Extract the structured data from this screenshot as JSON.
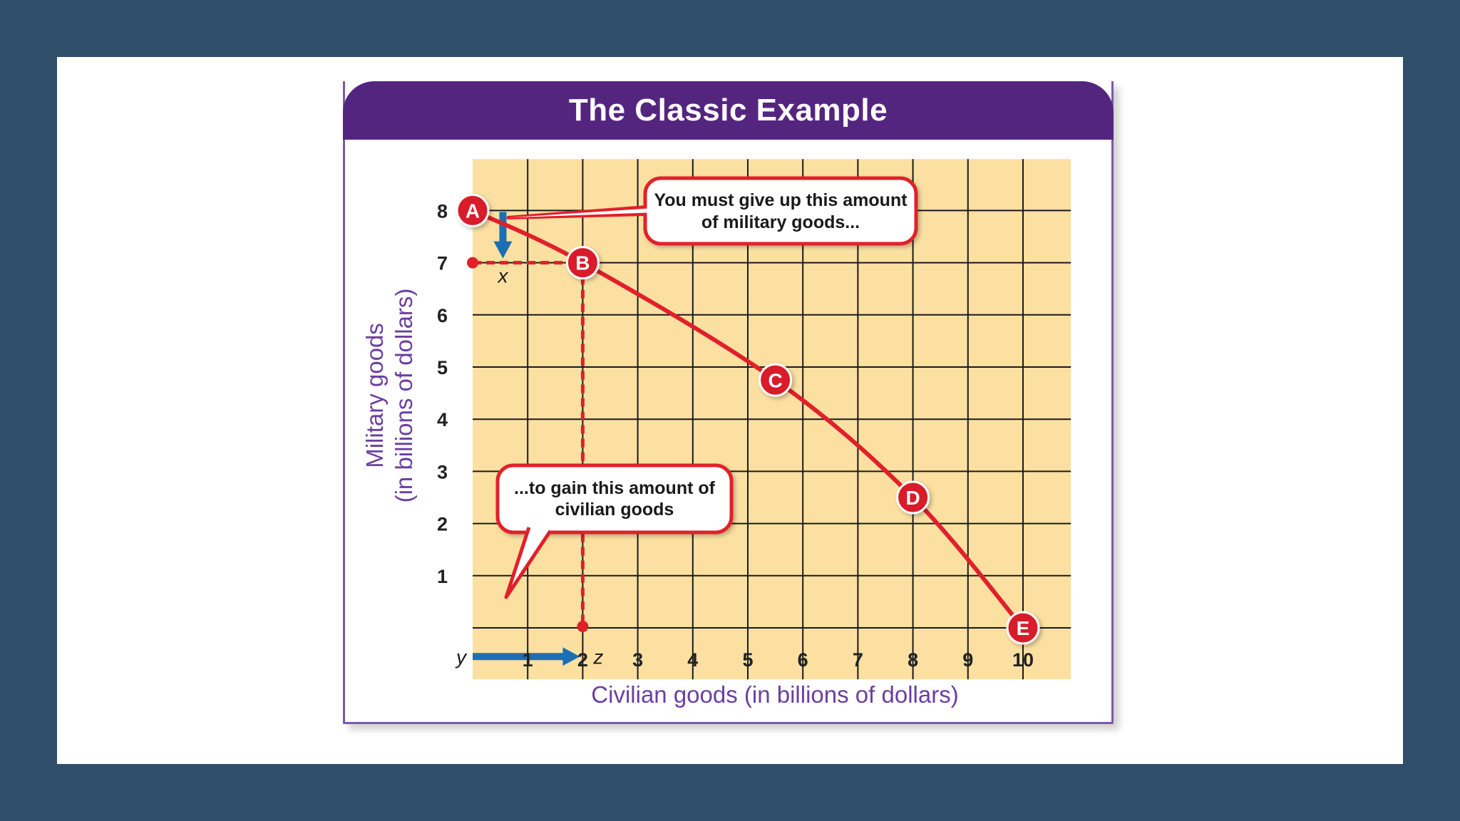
{
  "chart_data": {
    "type": "line",
    "title": "The Classic Example",
    "xlabel": "Civilian goods (in billions of dollars)",
    "ylabel_line1": "Military goods",
    "ylabel_line2": "(in billions of dollars)",
    "x_ticks": [
      1,
      2,
      3,
      4,
      5,
      6,
      7,
      8,
      9,
      10
    ],
    "y_ticks": [
      1,
      2,
      3,
      4,
      5,
      6,
      7,
      8
    ],
    "xlim": [
      0,
      11
    ],
    "ylim": [
      -1,
      9
    ],
    "grid": true,
    "points": [
      {
        "label": "A",
        "x": 0,
        "y": 8
      },
      {
        "label": "B",
        "x": 2,
        "y": 7
      },
      {
        "label": "C",
        "x": 5.5,
        "y": 4.75
      },
      {
        "label": "D",
        "x": 8,
        "y": 2.5
      },
      {
        "label": "E",
        "x": 10,
        "y": 0
      }
    ],
    "annotations": {
      "callout_top_line1": "You must give up this amount",
      "callout_top_line2": "of military goods...",
      "callout_bottom_line1": "...to gain this amount of",
      "callout_bottom_line2": "civilian goods",
      "marker_x": "x",
      "marker_y": "y",
      "marker_z": "z"
    },
    "colors": {
      "curve": "#e0202a",
      "plot_bg": "#fbe0a2",
      "grid": "#1a1a1a",
      "arrow": "#1d6fb4",
      "title_bar": "#54257f",
      "axis_title": "#6a3fa0"
    }
  }
}
